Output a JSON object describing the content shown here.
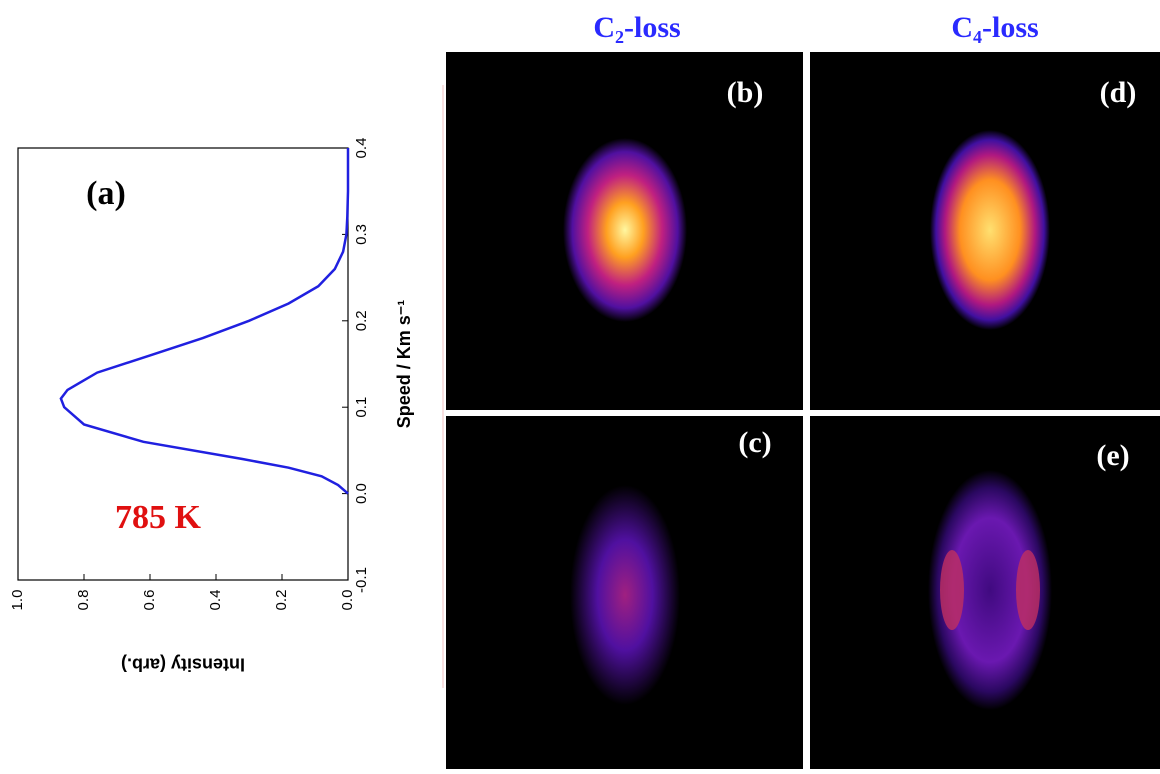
{
  "chart_data": {
    "type": "line",
    "panel_label": "(a)",
    "annotation": "785 K",
    "xlabel": "Speed / Km s⁻¹",
    "ylabel": "Intensity (arb.)",
    "x": [
      0.0,
      0.01,
      0.02,
      0.03,
      0.04,
      0.06,
      0.08,
      0.1,
      0.11,
      0.12,
      0.14,
      0.16,
      0.18,
      0.2,
      0.22,
      0.24,
      0.26,
      0.28,
      0.3,
      0.32,
      0.35,
      0.4
    ],
    "values": [
      0.0,
      0.03,
      0.08,
      0.18,
      0.32,
      0.62,
      0.8,
      0.86,
      0.87,
      0.85,
      0.76,
      0.6,
      0.44,
      0.3,
      0.18,
      0.09,
      0.04,
      0.015,
      0.005,
      0.002,
      0.0,
      0.0
    ],
    "color": "#2020e0",
    "xlim": [
      -0.1,
      0.4
    ],
    "xticks": [
      -0.1,
      {
        "value": 0,
        "label": "0.0"
      },
      0.1,
      0.2,
      0.3,
      0.4
    ],
    "ylim": [
      0,
      1
    ],
    "yticks": [
      {
        "value": 0,
        "label": "0.0"
      },
      0.2,
      0.4,
      0.6,
      0.8,
      {
        "value": 1,
        "label": "1.0"
      }
    ]
  },
  "images": {
    "titles": [
      "C₂-loss",
      "C₄-loss"
    ],
    "panels": [
      "(b)",
      "(c)",
      "(d)",
      "(e)"
    ]
  }
}
